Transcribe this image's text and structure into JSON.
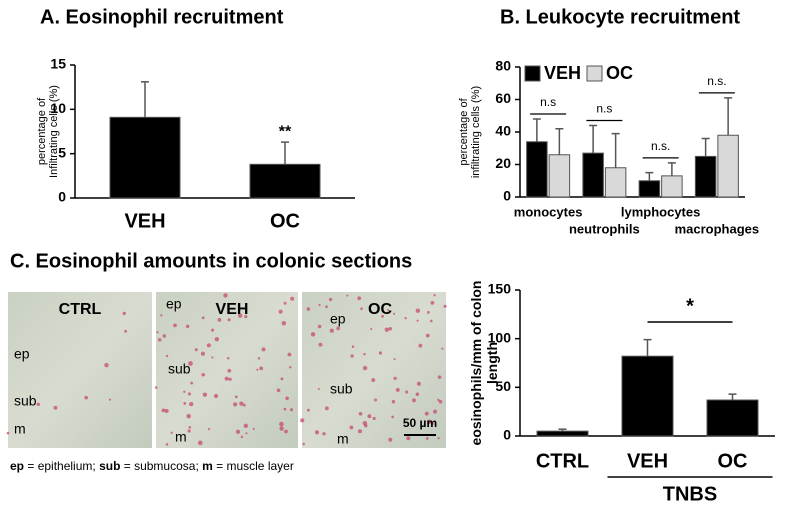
{
  "chart_data": [
    {
      "type": "bar",
      "title": "A. Eosinophil recruitment",
      "ylabel": [
        "percentage of",
        "Infiltrating cells (%)"
      ],
      "categories": [
        "VEH",
        "OC"
      ],
      "values": [
        9.1,
        3.8
      ],
      "errors": [
        4.0,
        2.5
      ],
      "color": "#000000",
      "annotation": "**",
      "ylim": [
        0,
        15
      ],
      "yticks": [
        0,
        5,
        10,
        15
      ]
    },
    {
      "type": "grouped-bar",
      "title": "B. Leukocyte recruitment",
      "ylabel": [
        "percentage of",
        "infiltrating cells (%)"
      ],
      "categories": [
        "monocytes",
        "neutrophils",
        "lymphocytes",
        "macrophages"
      ],
      "series": [
        {
          "name": "VEH",
          "color": "#000000",
          "values": [
            34,
            27,
            10,
            25
          ],
          "errors": [
            14,
            17,
            5,
            11
          ]
        },
        {
          "name": "OC",
          "color": "#d9d9d9",
          "values": [
            26,
            18,
            13,
            38
          ],
          "errors": [
            16,
            21,
            8,
            23
          ]
        }
      ],
      "annotations": [
        "n.s",
        "n.s",
        "n.s.",
        "n.s."
      ],
      "legend": "top-left",
      "ylim": [
        0,
        80
      ],
      "yticks": [
        0,
        20,
        40,
        60,
        80
      ]
    },
    {
      "type": "bar",
      "ylabel": [
        "eosinophils/mm of colon",
        "length"
      ],
      "categories": [
        "CTRL",
        "VEH",
        "OC"
      ],
      "values": [
        5,
        82,
        37
      ],
      "errors": [
        2,
        17,
        6
      ],
      "color": "#000000",
      "annotation": "*",
      "group_label": "TNBS",
      "ylim": [
        0,
        150
      ],
      "yticks": [
        0,
        50,
        100,
        150
      ]
    }
  ],
  "histology": {
    "title": "C. Eosinophil amounts in colonic sections",
    "panels": [
      {
        "label": "CTRL",
        "regions": [
          "ep",
          "sub",
          "m"
        ]
      },
      {
        "label": "VEH",
        "regions": [
          "ep",
          "sub",
          "m"
        ]
      },
      {
        "label": "OC",
        "regions": [
          "ep",
          "sub",
          "m"
        ]
      }
    ],
    "scale_bar": "50 µm",
    "legend": [
      "ep",
      " = epithelium; ",
      "sub",
      " = submucosa; ",
      "m",
      " = muscle layer"
    ]
  }
}
